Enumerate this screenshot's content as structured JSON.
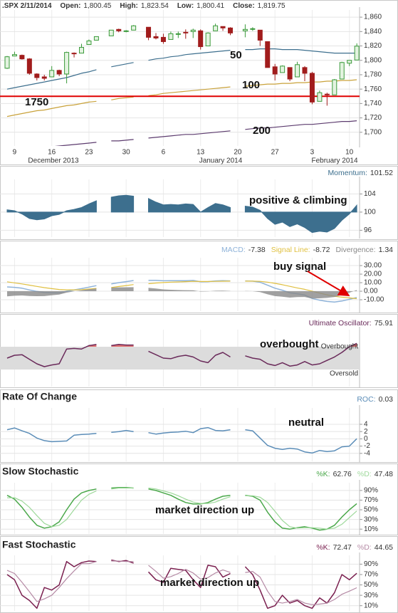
{
  "chart_data": [
    {
      "type": "candlestick",
      "title": ".SPX 2/11/2014",
      "stats": [
        {
          "label": "Open:",
          "value": "1,800.45"
        },
        {
          "label": "High:",
          "value": "1,823.54"
        },
        {
          "label": "Low:",
          "value": "1,800.41"
        },
        {
          "label": "Close:",
          "value": "1,819.75"
        }
      ],
      "categories": [
        null,
        "9",
        null,
        null,
        null,
        null,
        "16",
        null,
        null,
        null,
        null,
        "23",
        null,
        null,
        null,
        null,
        "30",
        null,
        null,
        null,
        null,
        "6",
        null,
        null,
        null,
        null,
        "13",
        null,
        null,
        null,
        null,
        "20",
        null,
        null,
        null,
        null,
        "27",
        null,
        null,
        null,
        null,
        "3",
        null,
        null,
        null,
        null,
        "10",
        null
      ],
      "x_groups": [
        "December 2013",
        "January 2014",
        "February 2014"
      ],
      "open": [
        1789,
        1806,
        1807,
        1802,
        1781,
        1777,
        1777,
        1786,
        1781,
        1810,
        1810,
        1822,
        1828,
        null,
        1834,
        1843,
        1841,
        1842,
        null,
        1846,
        1833,
        1832,
        1829,
        1837,
        1839,
        1840,
        1841,
        1820,
        1841,
        1847,
        1845,
        null,
        1841,
        1844,
        1842,
        1826,
        1791,
        1783,
        1790,
        1777,
        1790,
        1782,
        1743,
        1753,
        1752,
        1774,
        1796,
        1800.45
      ],
      "high": [
        1806,
        1812,
        1808,
        1803,
        1782,
        1780,
        1792,
        1787,
        1812,
        1811,
        1823,
        1829,
        1833,
        null,
        1842,
        1844,
        1842,
        1849,
        null,
        1846,
        1838,
        1837,
        1840,
        1840,
        1843,
        1844,
        1843,
        1839,
        1851,
        1847,
        1846,
        null,
        1850,
        1846,
        1842,
        1826,
        1795,
        1793,
        1790,
        1798,
        1792,
        1784,
        1758,
        1755,
        1774,
        1798,
        1800,
        1823.54
      ],
      "low": [
        1788,
        1806,
        1801,
        1780,
        1772,
        1772,
        1777,
        1778,
        1768,
        1804,
        1810,
        1822,
        1828,
        null,
        1834,
        1839,
        1839,
        1842,
        null,
        1828,
        1829,
        1823,
        1829,
        1831,
        1830,
        1831,
        1815,
        1820,
        1841,
        1841,
        1835,
        null,
        1832,
        1841,
        1820,
        1790,
        1772,
        1783,
        1771,
        1777,
        1771,
        1739,
        1743,
        1737,
        1752,
        1774,
        1792,
        1800.41
      ],
      "close": [
        1805,
        1808,
        1802,
        1782,
        1776,
        1775,
        1786,
        1781,
        1811,
        1809,
        1818,
        1827,
        1833,
        null,
        1842,
        1841,
        1841,
        1848,
        null,
        1832,
        1831,
        1826,
        1837,
        1837,
        1838,
        1842,
        1819,
        1838,
        1848,
        1845,
        1838,
        null,
        1843,
        1844,
        1828,
        1790,
        1781,
        1792,
        1774,
        1794,
        1782,
        1742,
        1755,
        1752,
        1773,
        1797,
        1800,
        1819.75
      ],
      "up_color": "#3a9a3a",
      "down_color": "#a11c1c",
      "series": [
        {
          "name": "50",
          "color": "#3d6f8e",
          "values": [
            1760,
            1762,
            1764,
            1766,
            1768,
            1770,
            1772,
            1774,
            1776,
            1779,
            1782,
            1784,
            1787,
            null,
            1791,
            1793,
            1795,
            1797,
            null,
            1800,
            1802,
            1803,
            1805,
            1806,
            1808,
            1809,
            1810,
            1811,
            1812,
            1813,
            1814,
            null,
            1815,
            1815,
            1816,
            1816,
            1816,
            1815,
            1815,
            1815,
            1814,
            1813,
            1812,
            1811,
            1810,
            1810,
            1810,
            1810
          ]
        },
        {
          "name": "100",
          "color": "#c9a23a",
          "values": [
            1722,
            1724,
            1726,
            1728,
            1730,
            1731,
            1733,
            1735,
            1737,
            1738,
            1740,
            1742,
            1743,
            null,
            1745,
            1747,
            1748,
            1749,
            null,
            1751,
            1752,
            1754,
            1755,
            1756,
            1757,
            1758,
            1759,
            1760,
            1761,
            1762,
            1763,
            null,
            1764,
            1765,
            1766,
            1767,
            1767,
            1768,
            1768,
            1769,
            1769,
            1770,
            1770,
            1771,
            1771,
            1772,
            1772,
            1773
          ]
        },
        {
          "name": "200",
          "color": "#5c3b6e",
          "values": [
            1675,
            1676,
            1677,
            1678,
            1679,
            1679,
            1680,
            1681,
            1682,
            1683,
            1684,
            1685,
            1686,
            null,
            1688,
            1688,
            1689,
            1690,
            null,
            1692,
            1693,
            1694,
            1695,
            1696,
            1697,
            1697,
            1698,
            1699,
            1700,
            1701,
            1702,
            null,
            1704,
            1705,
            1706,
            1706,
            1707,
            1708,
            1709,
            1710,
            1711,
            1711,
            1712,
            1713,
            1714,
            1715,
            1715,
            1716
          ]
        }
      ],
      "hline": {
        "value": 1750,
        "label": "1750",
        "color": "#e00000"
      },
      "ylim": [
        1681,
        1870
      ],
      "yticks": [
        {
          "value": 1700,
          "label": "1,700"
        },
        {
          "value": 1720,
          "label": "1,720"
        },
        {
          "value": 1740,
          "label": "1,740"
        },
        {
          "value": 1760,
          "label": "1,760"
        },
        {
          "value": 1780,
          "label": "1,780"
        },
        {
          "value": 1800,
          "label": "1,800"
        },
        {
          "value": 1820,
          "label": "1,820"
        },
        {
          "value": 1840,
          "label": "1,840"
        },
        {
          "value": 1860,
          "label": "1,860"
        }
      ],
      "grid": true
    },
    {
      "type": "area",
      "annotations": [
        "positive & climbing"
      ],
      "series": [
        {
          "name": "Momentum:",
          "color": "#3d6f8e",
          "values": [
            100.5,
            100.3,
            99.6,
            98.6,
            98.3,
            98.5,
            99.2,
            99.5,
            100.3,
            100.6,
            101.0,
            101.8,
            102.5,
            null,
            103.3,
            103.6,
            103.7,
            103.5,
            null,
            103.0,
            102.2,
            101.6,
            101.7,
            101.6,
            101.8,
            101.7,
            100.0,
            101.0,
            101.9,
            101.6,
            101.0,
            null,
            101.3,
            101.1,
            100.4,
            98.6,
            97.3,
            97.8,
            96.8,
            97.4,
            96.6,
            95.5,
            95.8,
            95.6,
            96.4,
            98.2,
            99.6,
            101.52
          ]
        }
      ],
      "ylim": [
        94.5,
        107.2
      ],
      "yticks": [
        96,
        100,
        104
      ],
      "grid": true
    },
    {
      "type": "line",
      "annotations": [
        "buy signal"
      ],
      "series": [
        {
          "name": "MACD:",
          "color": "#8fb3d9",
          "values": [
            5.0,
            4.5,
            3.5,
            1.5,
            -0.2,
            -1.5,
            -1.8,
            -2.0,
            0.0,
            1.5,
            3.0,
            4.8,
            6.5,
            null,
            8.5,
            10.0,
            11.2,
            12.5,
            null,
            12.8,
            12.7,
            12.2,
            12.3,
            12.3,
            12.4,
            12.6,
            11.0,
            11.2,
            12.0,
            12.3,
            12.0,
            null,
            12.0,
            11.8,
            10.5,
            7.0,
            3.5,
            1.2,
            -1.8,
            -3.0,
            -4.5,
            -8.5,
            -10.5,
            -12.0,
            -12.6,
            -11.5,
            -9.5,
            -7.38
          ]
        },
        {
          "name": "Signal Line:",
          "color": "#e0c040",
          "values": [
            11.0,
            9.8,
            8.5,
            7.1,
            5.6,
            4.2,
            3.0,
            2.0,
            1.6,
            1.6,
            1.9,
            2.5,
            3.3,
            null,
            4.3,
            5.5,
            6.6,
            7.8,
            null,
            8.8,
            9.6,
            10.1,
            10.6,
            10.9,
            11.2,
            11.5,
            11.4,
            11.4,
            11.5,
            11.7,
            11.8,
            null,
            11.8,
            11.8,
            11.5,
            10.6,
            9.2,
            7.6,
            5.7,
            3.9,
            2.2,
            0.1,
            -2.2,
            -4.2,
            -5.9,
            -7.0,
            -7.8,
            -8.72
          ]
        },
        {
          "name": "Divergence:",
          "color": "#888888",
          "style": "area",
          "values": [
            -6.0,
            -5.3,
            -5.0,
            -5.6,
            -5.8,
            -5.7,
            -4.8,
            -4.0,
            -1.6,
            -0.1,
            1.1,
            2.3,
            3.2,
            null,
            4.2,
            4.5,
            4.6,
            4.7,
            null,
            4.0,
            3.1,
            2.1,
            1.7,
            1.4,
            1.2,
            1.1,
            -0.4,
            -0.2,
            0.5,
            0.6,
            0.2,
            null,
            0.2,
            0.0,
            -1.0,
            -3.6,
            -5.7,
            -6.4,
            -7.5,
            -6.9,
            -6.7,
            -8.6,
            -8.3,
            -7.8,
            -6.7,
            -4.5,
            -1.7,
            1.34
          ]
        }
      ],
      "ylim": [
        -23.3,
        39.2
      ],
      "yticks": [
        {
          "value": -10,
          "label": "-10.00"
        },
        {
          "value": 0,
          "label": "0.00"
        },
        {
          "value": 10,
          "label": "10.00"
        },
        {
          "value": 20,
          "label": "20.00"
        },
        {
          "value": 30,
          "label": "30.00"
        }
      ],
      "grid": true
    },
    {
      "type": "line",
      "annotations": [
        "overbought"
      ],
      "bands": [
        {
          "label": "Overbought",
          "value": 70,
          "color": "#e07070"
        },
        {
          "label": "Oversold",
          "value": 30,
          "color": "#8fc88f"
        }
      ],
      "series": [
        {
          "name": "Ultimate Oscillator:",
          "color": "#6a2a5a",
          "values": [
            50,
            55,
            56,
            48,
            40,
            35,
            38,
            40,
            66,
            67,
            66,
            72,
            74,
            null,
            72,
            74,
            73,
            73,
            null,
            62,
            56,
            50,
            49,
            53,
            55,
            52,
            45,
            42,
            55,
            60,
            52,
            null,
            54,
            50,
            48,
            40,
            37,
            42,
            36,
            38,
            44,
            38,
            40,
            46,
            52,
            60,
            70,
            75.91
          ]
        }
      ],
      "ylim": [
        0,
        100
      ],
      "yticks": [],
      "grid": false
    },
    {
      "type": "line",
      "title": "Rate Of Change",
      "annotations": [
        "neutral"
      ],
      "series": [
        {
          "name": "ROC:",
          "color": "#5b8db8",
          "values": [
            2.5,
            3.0,
            2.2,
            1.5,
            0.2,
            -0.5,
            -0.8,
            -0.7,
            -0.6,
            1.0,
            1.2,
            1.3,
            1.5,
            null,
            1.8,
            2.0,
            2.3,
            2.0,
            null,
            1.7,
            1.3,
            1.6,
            1.8,
            1.9,
            2.1,
            1.7,
            2.8,
            3.1,
            2.3,
            2.2,
            2.5,
            null,
            2.5,
            2.2,
            0.2,
            -1.8,
            -2.6,
            -2.9,
            -2.6,
            -2.8,
            -3.6,
            -3.9,
            -3.2,
            -3.5,
            -3.3,
            -2.2,
            -2.0,
            0.03
          ]
        }
      ],
      "ylim": [
        -6.2,
        8.5
      ],
      "yticks": [
        -4,
        -2,
        0,
        2,
        4
      ],
      "grid": true
    },
    {
      "type": "line",
      "title": "Slow Stochastic",
      "annotations": [
        "market direction up"
      ],
      "series": [
        {
          "name": "%K:",
          "color": "#4aa84a",
          "values": [
            80,
            72,
            55,
            35,
            18,
            12,
            15,
            25,
            50,
            72,
            85,
            90,
            93,
            null,
            95,
            96,
            96,
            95,
            null,
            93,
            90,
            85,
            80,
            72,
            65,
            62,
            62,
            65,
            72,
            78,
            80,
            null,
            80,
            78,
            70,
            45,
            25,
            12,
            10,
            13,
            15,
            12,
            8,
            10,
            18,
            35,
            50,
            62.76
          ]
        },
        {
          "name": "%D:",
          "color": "#9ed99b",
          "values": [
            75,
            75,
            68,
            55,
            38,
            22,
            15,
            18,
            30,
            50,
            70,
            82,
            89,
            null,
            93,
            95,
            95,
            95,
            null,
            95,
            93,
            89,
            85,
            79,
            72,
            66,
            63,
            63,
            66,
            72,
            77,
            null,
            79,
            79,
            76,
            65,
            47,
            28,
            15,
            12,
            13,
            13,
            12,
            10,
            12,
            20,
            34,
            47.48
          ]
        }
      ],
      "ylim": [
        0,
        106
      ],
      "yticks": [
        {
          "value": 10,
          "label": "10%"
        },
        {
          "value": 30,
          "label": "30%"
        },
        {
          "value": 50,
          "label": "50%"
        },
        {
          "value": 70,
          "label": "70%"
        },
        {
          "value": 90,
          "label": "90%"
        }
      ],
      "grid": true
    },
    {
      "type": "line",
      "title": "Fast Stochastic",
      "annotations": [
        "market direction up"
      ],
      "series": [
        {
          "name": "%K:",
          "color": "#7a1f4f",
          "values": [
            70,
            60,
            30,
            20,
            5,
            45,
            40,
            50,
            95,
            85,
            93,
            96,
            95,
            null,
            98,
            95,
            97,
            92,
            null,
            75,
            60,
            55,
            82,
            80,
            78,
            60,
            45,
            88,
            85,
            65,
            72,
            null,
            85,
            70,
            40,
            5,
            10,
            30,
            15,
            20,
            10,
            5,
            25,
            15,
            35,
            70,
            60,
            72.47
          ]
        },
        {
          "name": "%D:",
          "color": "#b58aa5",
          "values": [
            78,
            72,
            55,
            37,
            18,
            23,
            30,
            45,
            62,
            77,
            91,
            91,
            95,
            null,
            96,
            96,
            95,
            95,
            null,
            88,
            76,
            63,
            66,
            72,
            80,
            73,
            61,
            64,
            73,
            79,
            74,
            null,
            74,
            76,
            65,
            38,
            18,
            15,
            18,
            22,
            15,
            12,
            13,
            15,
            22,
            32,
            38,
            44.65
          ]
        }
      ],
      "ylim": [
        0,
        107
      ],
      "yticks": [
        {
          "value": 10,
          "label": "10%"
        },
        {
          "value": 30,
          "label": "30%"
        },
        {
          "value": 50,
          "label": "50%"
        },
        {
          "value": 70,
          "label": "70%"
        },
        {
          "value": 90,
          "label": "90%"
        }
      ],
      "grid": true
    }
  ]
}
